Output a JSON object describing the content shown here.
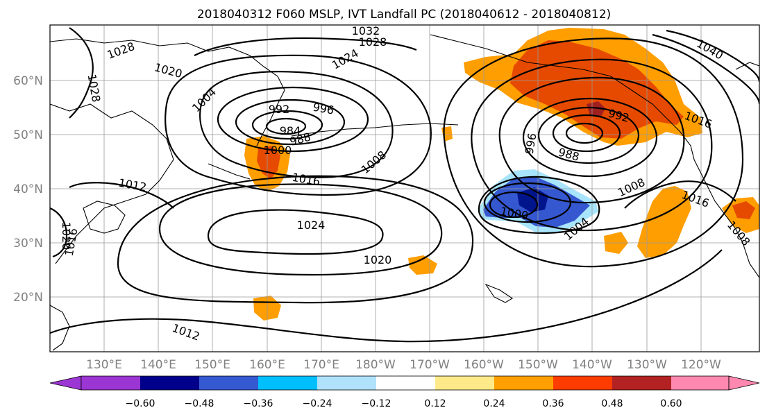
{
  "title": "2018040312 F060 MSLP, IVT Landfall PC (2018040612 - 2018040812)",
  "map": {
    "lat_labels": [
      "60°N",
      "50°N",
      "40°N",
      "30°N",
      "20°N"
    ],
    "lon_labels": [
      "130°E",
      "140°E",
      "150°E",
      "160°E",
      "170°E",
      "180°W",
      "170°W",
      "160°W",
      "150°W",
      "140°W",
      "130°W",
      "120°W"
    ],
    "isobar_labels": [
      "1032",
      "1028",
      "1028",
      "1020",
      "1028",
      "1024",
      "1040",
      "1004",
      "992",
      "996",
      "984",
      "988",
      "1000",
      "1008",
      "1016",
      "992",
      "996",
      "988",
      "1016",
      "1012",
      "1008",
      "1016",
      "1020",
      "1016",
      "1024",
      "1000",
      "1004",
      "1008",
      "1020",
      "1012"
    ],
    "shading_colors": {
      "strong_positive": "#e64a00",
      "positive": "#ff9e00",
      "weak_positive": "#ffe98a",
      "darkest_positive": "#a02020",
      "negative": "#3558d0",
      "strong_negative": "#00148c",
      "weak_negative": "#00bfff",
      "faint_negative": "#a8e4fb"
    }
  },
  "colorbar": {
    "colors": [
      "#9b35d3",
      "#00008b",
      "#3559d0",
      "#00bfff",
      "#b0e2fb",
      "#ffffff",
      "#ffea8a",
      "#ffa000",
      "#ff3c00",
      "#b22222",
      "#ff88b0"
    ],
    "tick_labels": [
      "−0.60",
      "−0.48",
      "−0.36",
      "−0.24",
      "−0.12",
      "0.12",
      "0.24",
      "0.36",
      "0.48",
      "0.60"
    ]
  }
}
